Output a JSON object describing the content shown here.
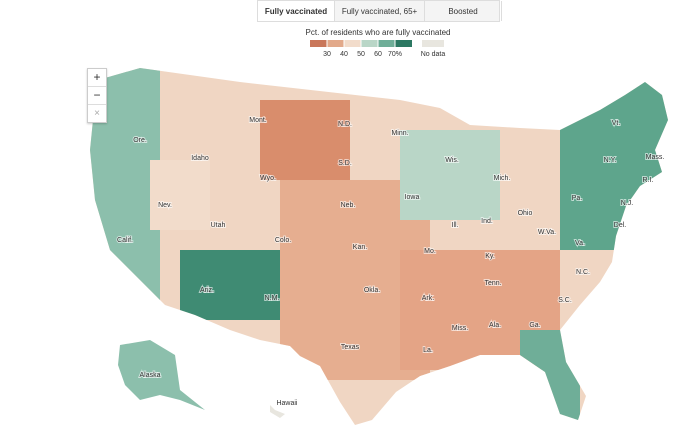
{
  "tabs": [
    "Fully vaccinated",
    "Fully vaccinated, 65+",
    "Boosted"
  ],
  "legend": {
    "title": "Pct. of residents who are fully vaccinated",
    "ticks": [
      30,
      40,
      50,
      60,
      {
        "value": 70,
        "label": "70%"
      }
    ],
    "colors": [
      "#c9775a",
      "#e2a98a",
      "#f2dccb",
      "#b9d6c7",
      "#6fae98",
      "#2c7862"
    ],
    "no_data_label": "No data",
    "no_data_color": "#e8e6df"
  },
  "zoom": [
    "+",
    "−",
    "×"
  ],
  "states": [
    "Ore.",
    "Idaho",
    "Mont.",
    "N.D.",
    "Minn.",
    "Wis.",
    "Mich.",
    "S.D.",
    "Wyo.",
    "Neb.",
    "Iowa",
    "Ill.",
    "Ind.",
    "Ohio",
    "Pa.",
    "N.Y.",
    "Vt.",
    "Mass.",
    "R.I.",
    "N.J.",
    "Del.",
    "Va.",
    "W.Va.",
    "Ky.",
    "Tenn.",
    "N.C.",
    "S.C.",
    "Ga.",
    "Ala.",
    "Miss.",
    "La.",
    "Ark.",
    "Mo.",
    "Kan.",
    "Okla.",
    "Texas",
    "N.M.",
    "Ariz.",
    "Colo.",
    "Utah",
    "Nev.",
    "Calif.",
    "Alaska",
    "Hawaii"
  ]
}
